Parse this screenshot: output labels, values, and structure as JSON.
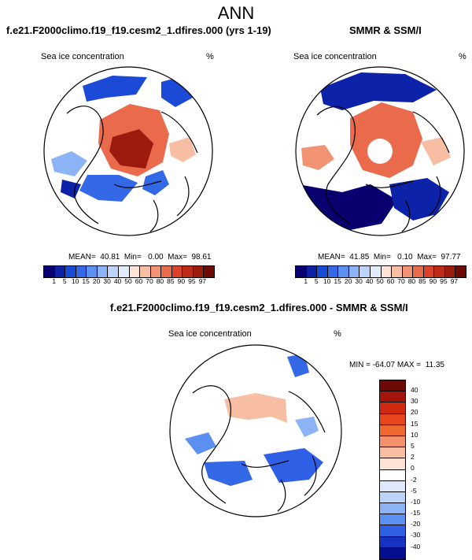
{
  "figure": {
    "title": "ANN",
    "panel_left_title": "f.e21.F2000climo.f19_f19.cesm2_1.dfires.000 (yrs 1-19)",
    "panel_right_title": "SMMR & SSM/I",
    "panel_diff_title": "f.e21.F2000climo.f19_f19.cesm2_1.dfires.000 - SMMR & SSM/I",
    "variable_label": "Sea ice concentration",
    "units": "%"
  },
  "stats": {
    "left": "MEAN=  40.81  Min=   0.00  Max=  98.61",
    "right": "MEAN=  41.85  Min=   0.10  Max=  97.77",
    "diff": "MIN = -64.07 MAX =  11.35"
  },
  "chart_data": {
    "type": "heatmap",
    "projection": "north polar stereographic",
    "conc_levels": [
      "1",
      "5",
      "10",
      "15",
      "20",
      "30",
      "40",
      "50",
      "60",
      "70",
      "80",
      "85",
      "90",
      "95",
      "97"
    ],
    "conc_colors": [
      "#08006f",
      "#0c22a8",
      "#1a4ad6",
      "#3368e6",
      "#5b8ff0",
      "#8cb3f5",
      "#bdd3f9",
      "#e3ecfd",
      "#fde4d6",
      "#f8bea3",
      "#f29474",
      "#ea6a4c",
      "#dc4129",
      "#be2a15",
      "#9c1a0e",
      "#6e0a05"
    ],
    "diff_levels": [
      "40",
      "30",
      "20",
      "15",
      "10",
      "5",
      "2",
      "0",
      "-2",
      "-5",
      "-10",
      "-15",
      "-20",
      "-30",
      "-40"
    ],
    "diff_colors": [
      "#6e0a05",
      "#a3150c",
      "#d22a12",
      "#e8471d",
      "#f0672d",
      "#f4916a",
      "#f8bea3",
      "#fde4d6",
      "#ffffff",
      "#dfe8fc",
      "#bdd3f9",
      "#8cb3f5",
      "#5b8ff0",
      "#2f5fe4",
      "#1632c2",
      "#050e8c"
    ]
  }
}
